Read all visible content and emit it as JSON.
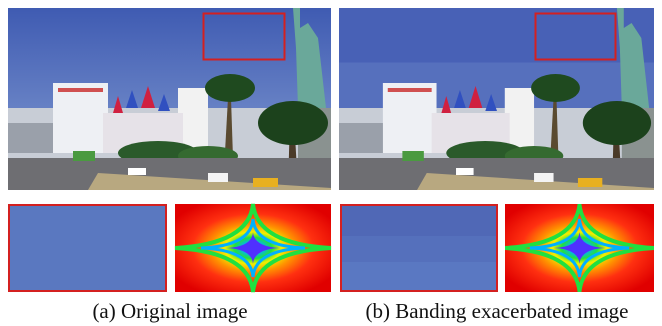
{
  "panels": [
    {
      "caption": "(a) Original image"
    },
    {
      "caption": "(b) Banding exacerbated image"
    }
  ]
}
